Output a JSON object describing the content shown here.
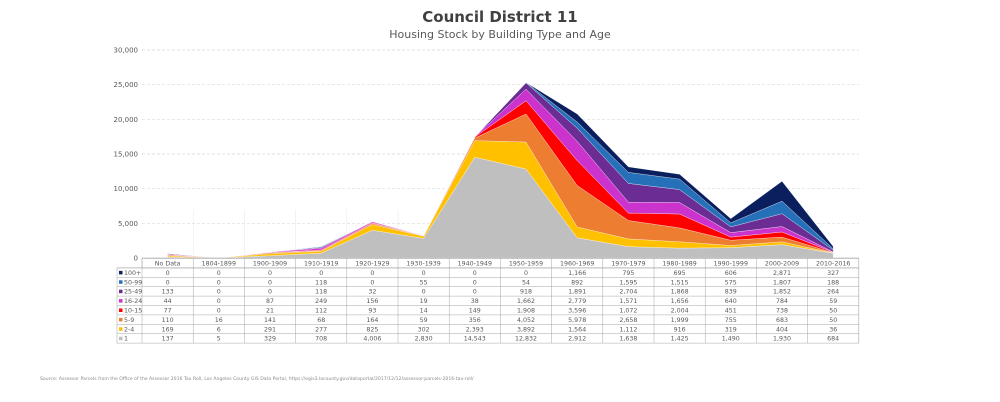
{
  "chart_data": {
    "type": "area",
    "stacked": true,
    "title": "Council District 11",
    "subtitle": "Housing Stock by Building Type and Age",
    "ylim": [
      0,
      30000
    ],
    "yticks": [
      "0",
      "5,000",
      "10,000",
      "15,000",
      "20,000",
      "25,000",
      "30,000"
    ],
    "ytick_values": [
      0,
      5000,
      10000,
      15000,
      20000,
      25000,
      30000
    ],
    "grid": true,
    "legend": "data-table",
    "categories": [
      "No Data",
      "1804-1899",
      "1900-1909",
      "1910-1919",
      "1920-1929",
      "1930-1939",
      "1940-1949",
      "1950-1959",
      "1960-1969",
      "1970-1979",
      "1980-1989",
      "1990-1999",
      "2000-2009",
      "2010-2016"
    ],
    "series": [
      {
        "name": "100+",
        "color": "#0b1f5e",
        "values": [
          0,
          0,
          0,
          0,
          0,
          0,
          0,
          0,
          1166,
          795,
          695,
          606,
          2871,
          327
        ]
      },
      {
        "name": "50-99",
        "color": "#2570b8",
        "values": [
          0,
          0,
          0,
          118,
          0,
          55,
          0,
          54,
          892,
          1595,
          1515,
          575,
          1807,
          188
        ]
      },
      {
        "name": "25-49",
        "color": "#6b2d93",
        "values": [
          133,
          0,
          0,
          118,
          32,
          0,
          0,
          918,
          1891,
          2704,
          1868,
          839,
          1852,
          264
        ]
      },
      {
        "name": "16-24",
        "color": "#cc33cc",
        "values": [
          44,
          0,
          87,
          249,
          156,
          19,
          38,
          1662,
          2779,
          1571,
          1656,
          640,
          784,
          59
        ]
      },
      {
        "name": "10-15",
        "color": "#ff0000",
        "values": [
          77,
          0,
          21,
          112,
          93,
          14,
          149,
          1908,
          3596,
          1072,
          2004,
          451,
          738,
          50
        ]
      },
      {
        "name": "5-9",
        "color": "#ed7d31",
        "values": [
          110,
          16,
          141,
          68,
          164,
          59,
          356,
          4052,
          5978,
          2658,
          1999,
          755,
          683,
          50
        ]
      },
      {
        "name": "2-4",
        "color": "#ffc000",
        "values": [
          169,
          6,
          291,
          277,
          825,
          302,
          2393,
          3892,
          1564,
          1112,
          916,
          319,
          404,
          36
        ]
      },
      {
        "name": "1",
        "color": "#bfbfbf",
        "values": [
          137,
          5,
          329,
          708,
          4006,
          2830,
          14543,
          12832,
          2912,
          1638,
          1425,
          1490,
          1930,
          684
        ]
      }
    ]
  },
  "source": "Source: Assessor Parcels from the Office of the Assessor 2016 Tax Roll, Los Angeles County GIS Data Portal, https://egis3.lacounty.gov/dataportal/2017/12/12/assessor-parcels-2016-tax-roll/"
}
